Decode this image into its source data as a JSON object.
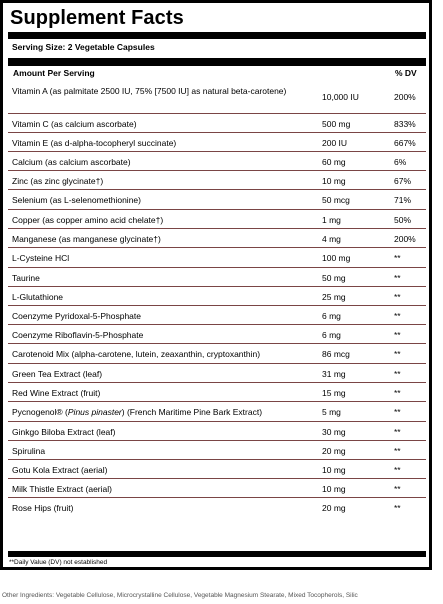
{
  "title": "Supplement Facts",
  "serving_size": "Serving Size: 2 Vegetable Capsules",
  "header": {
    "amount_per_serving": "Amount Per Serving",
    "dv": "% DV"
  },
  "rows": [
    {
      "name": "Vitamin A (as palmitate 2500 IU, 75% [7500 IU] as natural beta-carotene)",
      "amount": "10,000 IU",
      "dv": "200%"
    },
    {
      "name": "Vitamin C (as calcium ascorbate)",
      "amount": "500 mg",
      "dv": "833%"
    },
    {
      "name": "Vitamin E (as d-alpha-tocopheryl succinate)",
      "amount": "200 IU",
      "dv": "667%"
    },
    {
      "name": "Calcium (as calcium ascorbate)",
      "amount": "60 mg",
      "dv": "6%"
    },
    {
      "name": "Zinc (as zinc glycinate†)",
      "amount": "10 mg",
      "dv": "67%"
    },
    {
      "name": "Selenium (as L-selenomethionine)",
      "amount": "50 mcg",
      "dv": "71%"
    },
    {
      "name": "Copper (as copper amino acid chelate†)",
      "amount": "1 mg",
      "dv": "50%"
    },
    {
      "name": "Manganese (as manganese glycinate†)",
      "amount": "4 mg",
      "dv": "200%"
    },
    {
      "name": "L-Cysteine HCl",
      "amount": "100 mg",
      "dv": "**"
    },
    {
      "name": "Taurine",
      "amount": "50 mg",
      "dv": "**"
    },
    {
      "name": "L-Glutathione",
      "amount": "25 mg",
      "dv": "**"
    },
    {
      "name": "Coenzyme Pyridoxal-5-Phosphate",
      "amount": "6 mg",
      "dv": "**"
    },
    {
      "name": "Coenzyme Riboflavin-5-Phosphate",
      "amount": "6 mg",
      "dv": "**"
    },
    {
      "name": "Carotenoid Mix (alpha-carotene, lutein, zeaxanthin, cryptoxanthin)",
      "amount": "86 mcg",
      "dv": "**"
    },
    {
      "name": "Green Tea Extract (leaf)",
      "amount": "31 mg",
      "dv": "**"
    },
    {
      "name": "Red Wine Extract (fruit)",
      "amount": "15 mg",
      "dv": "**"
    },
    {
      "name_parts": [
        "Pycnogenol® (",
        "Pinus pinaster",
        ") (French Maritime Pine Bark Extract)"
      ],
      "amount": "5 mg",
      "dv": "**"
    },
    {
      "name": "Ginkgo Biloba Extract (leaf)",
      "amount": "30 mg",
      "dv": "**"
    },
    {
      "name": "Spirulina",
      "amount": "20 mg",
      "dv": "**"
    },
    {
      "name": "Gotu Kola Extract (aerial)",
      "amount": "10 mg",
      "dv": "**"
    },
    {
      "name": "Milk Thistle Extract (aerial)",
      "amount": "10 mg",
      "dv": "**"
    },
    {
      "name": "Rose Hips (fruit)",
      "amount": "20 mg",
      "dv": "**"
    }
  ],
  "footnote": "**Daily Value (DV) not established",
  "other_ingredients": "Other Ingredients: Vegetable Cellulose, Microcrystalline Cellulose, Vegetable Magnesium Stearate, Mixed Tocopherols, Silic"
}
